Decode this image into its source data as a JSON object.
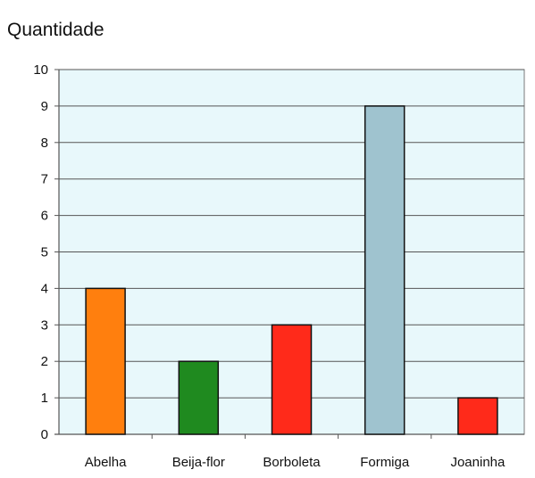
{
  "chart_data": {
    "type": "bar",
    "title": "",
    "ylabel": "Quantidade",
    "xlabel": "",
    "categories": [
      "Abelha",
      "Beija-flor",
      "Borboleta",
      "Formiga",
      "Joaninha"
    ],
    "values": [
      4,
      2,
      3,
      9,
      1
    ],
    "bar_colors": [
      "#ff7f0e",
      "#1f8a1f",
      "#ff2a1a",
      "#9fc3cf",
      "#ff2a1a"
    ],
    "ylim": [
      0,
      10
    ],
    "yticks": [
      0,
      1,
      2,
      3,
      4,
      5,
      6,
      7,
      8,
      9,
      10
    ],
    "grid": true,
    "legend": "none",
    "plot_background": "#e8f8fb"
  }
}
